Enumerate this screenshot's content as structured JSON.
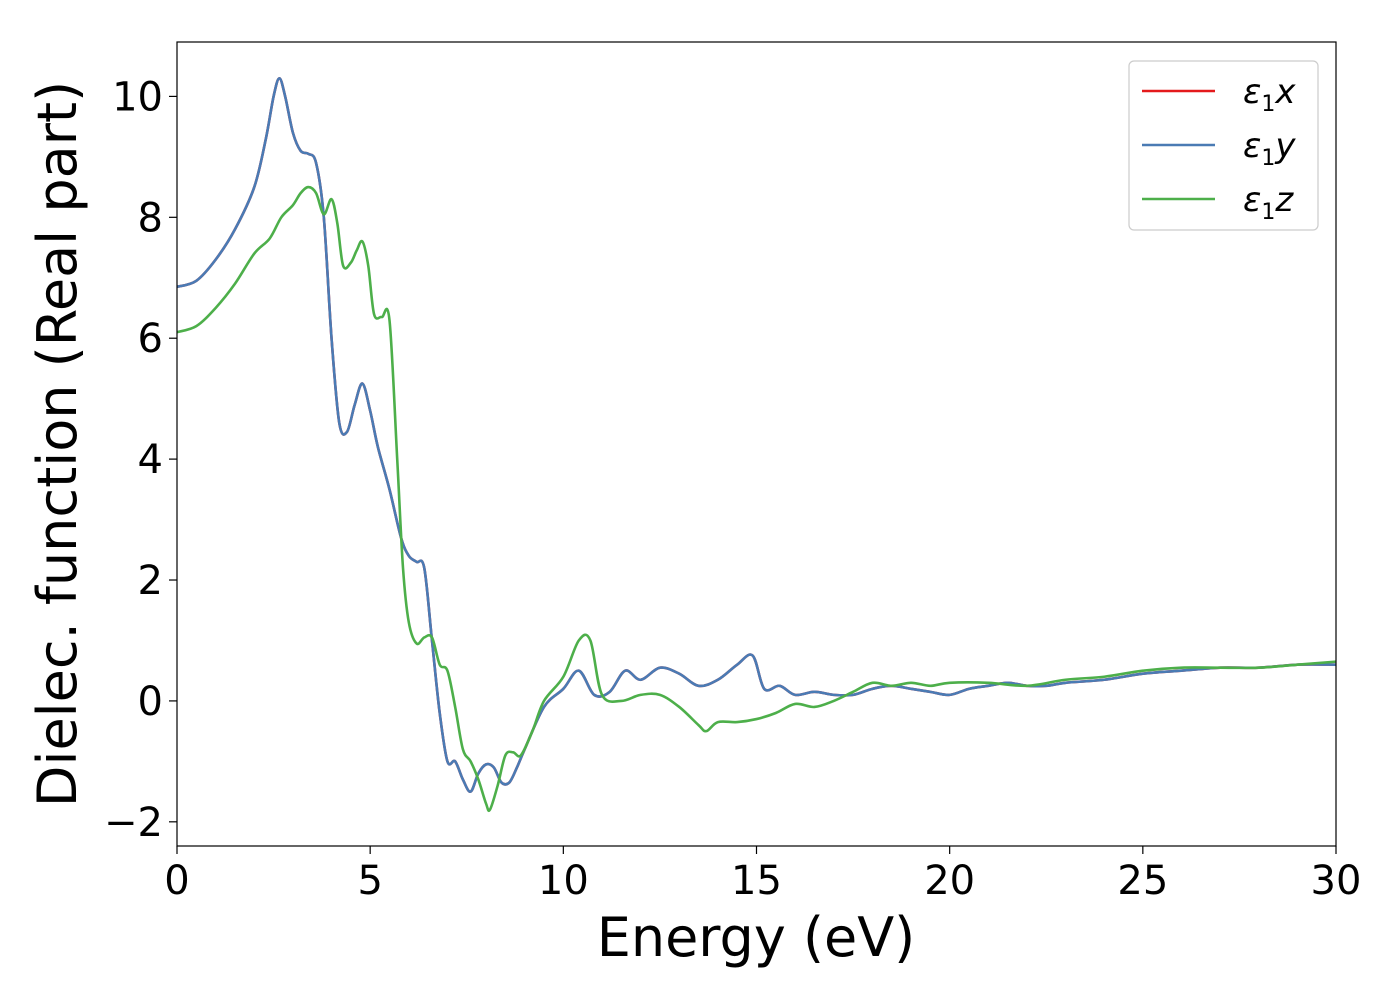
{
  "chart_data": {
    "type": "line",
    "xlabel": "Energy (eV)",
    "ylabel": "Dielec. function (Real part)",
    "xlim": [
      0,
      30
    ],
    "ylim": [
      -2.4,
      10.9
    ],
    "xticks": [
      0,
      5,
      10,
      15,
      20,
      25,
      30
    ],
    "yticks": [
      -2,
      0,
      2,
      4,
      6,
      8,
      10
    ],
    "xtick_labels": [
      "0",
      "5",
      "10",
      "15",
      "20",
      "25",
      "30"
    ],
    "ytick_labels": [
      "−2",
      "0",
      "2",
      "4",
      "6",
      "8",
      "10"
    ],
    "grid": false,
    "legend_position": "top-right",
    "series": [
      {
        "name": "ε₁x",
        "symbol": "ε",
        "subscript": "1",
        "axis": "x",
        "color": "#e41a1c",
        "x": [
          0,
          0.5,
          1.0,
          1.5,
          2.0,
          2.3,
          2.5,
          2.65,
          2.8,
          3.0,
          3.2,
          3.4,
          3.6,
          3.8,
          4.0,
          4.2,
          4.4,
          4.6,
          4.8,
          5.0,
          5.2,
          5.5,
          5.8,
          6.0,
          6.2,
          6.4,
          6.6,
          6.8,
          7.0,
          7.2,
          7.4,
          7.6,
          7.8,
          8.0,
          8.2,
          8.4,
          8.6,
          8.8,
          9.0,
          9.5,
          10.0,
          10.4,
          10.8,
          11.2,
          11.6,
          12.0,
          12.5,
          13.0,
          13.5,
          14.0,
          14.5,
          14.9,
          15.2,
          15.6,
          16.0,
          16.5,
          17.0,
          17.5,
          18.0,
          18.5,
          19.0,
          19.5,
          20.0,
          20.5,
          21.0,
          21.5,
          22.0,
          22.5,
          23.0,
          24.0,
          25.0,
          26.0,
          27.0,
          28.0,
          29.0,
          30.0
        ],
        "y": [
          6.85,
          6.95,
          7.3,
          7.8,
          8.5,
          9.3,
          10.0,
          10.3,
          10.0,
          9.4,
          9.1,
          9.05,
          8.9,
          8.0,
          6.0,
          4.6,
          4.45,
          4.9,
          5.25,
          4.8,
          4.2,
          3.5,
          2.7,
          2.4,
          2.3,
          2.2,
          1.0,
          -0.2,
          -1.0,
          -1.0,
          -1.3,
          -1.5,
          -1.2,
          -1.05,
          -1.1,
          -1.35,
          -1.35,
          -1.1,
          -0.8,
          -0.1,
          0.2,
          0.5,
          0.1,
          0.15,
          0.5,
          0.35,
          0.55,
          0.45,
          0.25,
          0.35,
          0.6,
          0.75,
          0.2,
          0.25,
          0.1,
          0.15,
          0.1,
          0.1,
          0.2,
          0.25,
          0.2,
          0.15,
          0.1,
          0.2,
          0.25,
          0.3,
          0.25,
          0.25,
          0.3,
          0.35,
          0.45,
          0.5,
          0.55,
          0.55,
          0.6,
          0.6
        ]
      },
      {
        "name": "ε₁y",
        "symbol": "ε",
        "subscript": "1",
        "axis": "y",
        "color": "#4a7bb4",
        "x": [
          0,
          0.5,
          1.0,
          1.5,
          2.0,
          2.3,
          2.5,
          2.65,
          2.8,
          3.0,
          3.2,
          3.4,
          3.6,
          3.8,
          4.0,
          4.2,
          4.4,
          4.6,
          4.8,
          5.0,
          5.2,
          5.5,
          5.8,
          6.0,
          6.2,
          6.4,
          6.6,
          6.8,
          7.0,
          7.2,
          7.4,
          7.6,
          7.8,
          8.0,
          8.2,
          8.4,
          8.6,
          8.8,
          9.0,
          9.5,
          10.0,
          10.4,
          10.8,
          11.2,
          11.6,
          12.0,
          12.5,
          13.0,
          13.5,
          14.0,
          14.5,
          14.9,
          15.2,
          15.6,
          16.0,
          16.5,
          17.0,
          17.5,
          18.0,
          18.5,
          19.0,
          19.5,
          20.0,
          20.5,
          21.0,
          21.5,
          22.0,
          22.5,
          23.0,
          24.0,
          25.0,
          26.0,
          27.0,
          28.0,
          29.0,
          30.0
        ],
        "y": [
          6.85,
          6.95,
          7.3,
          7.8,
          8.5,
          9.3,
          10.0,
          10.3,
          10.0,
          9.4,
          9.1,
          9.05,
          8.9,
          8.0,
          6.0,
          4.6,
          4.45,
          4.9,
          5.25,
          4.8,
          4.2,
          3.5,
          2.7,
          2.4,
          2.3,
          2.2,
          1.0,
          -0.2,
          -1.0,
          -1.0,
          -1.3,
          -1.5,
          -1.2,
          -1.05,
          -1.1,
          -1.35,
          -1.35,
          -1.1,
          -0.8,
          -0.1,
          0.2,
          0.5,
          0.1,
          0.15,
          0.5,
          0.35,
          0.55,
          0.45,
          0.25,
          0.35,
          0.6,
          0.75,
          0.2,
          0.25,
          0.1,
          0.15,
          0.1,
          0.1,
          0.2,
          0.25,
          0.2,
          0.15,
          0.1,
          0.2,
          0.25,
          0.3,
          0.25,
          0.25,
          0.3,
          0.35,
          0.45,
          0.5,
          0.55,
          0.55,
          0.6,
          0.6
        ]
      },
      {
        "name": "ε₁z",
        "symbol": "ε",
        "subscript": "1",
        "axis": "z",
        "color": "#4daf4a",
        "x": [
          0,
          0.5,
          1.0,
          1.5,
          2.0,
          2.4,
          2.7,
          3.0,
          3.2,
          3.4,
          3.6,
          3.8,
          4.0,
          4.15,
          4.3,
          4.5,
          4.65,
          4.8,
          4.95,
          5.1,
          5.3,
          5.5,
          5.7,
          5.85,
          6.0,
          6.2,
          6.4,
          6.6,
          6.8,
          7.0,
          7.2,
          7.4,
          7.6,
          7.8,
          8.0,
          8.1,
          8.3,
          8.5,
          8.7,
          8.9,
          9.2,
          9.5,
          10.0,
          10.4,
          10.7,
          11.0,
          11.5,
          12.0,
          12.5,
          13.0,
          13.5,
          13.7,
          14.0,
          14.5,
          15.0,
          15.5,
          16.0,
          16.5,
          17.0,
          17.5,
          18.0,
          18.5,
          19.0,
          19.5,
          20.0,
          21.0,
          22.0,
          23.0,
          24.0,
          25.0,
          26.0,
          27.0,
          28.0,
          29.0,
          30.0
        ],
        "y": [
          6.1,
          6.2,
          6.5,
          6.9,
          7.4,
          7.65,
          8.0,
          8.2,
          8.4,
          8.5,
          8.4,
          8.05,
          8.3,
          7.9,
          7.2,
          7.25,
          7.45,
          7.6,
          7.2,
          6.4,
          6.35,
          6.3,
          4.0,
          2.2,
          1.3,
          0.95,
          1.05,
          1.05,
          0.6,
          0.5,
          -0.1,
          -0.8,
          -1.0,
          -1.3,
          -1.7,
          -1.8,
          -1.4,
          -0.9,
          -0.85,
          -0.9,
          -0.5,
          0.0,
          0.4,
          1.0,
          1.0,
          0.1,
          0.0,
          0.1,
          0.1,
          -0.1,
          -0.4,
          -0.5,
          -0.35,
          -0.35,
          -0.3,
          -0.2,
          -0.05,
          -0.1,
          0.0,
          0.15,
          0.3,
          0.25,
          0.3,
          0.25,
          0.3,
          0.3,
          0.25,
          0.35,
          0.4,
          0.5,
          0.55,
          0.55,
          0.55,
          0.6,
          0.65
        ]
      }
    ]
  }
}
